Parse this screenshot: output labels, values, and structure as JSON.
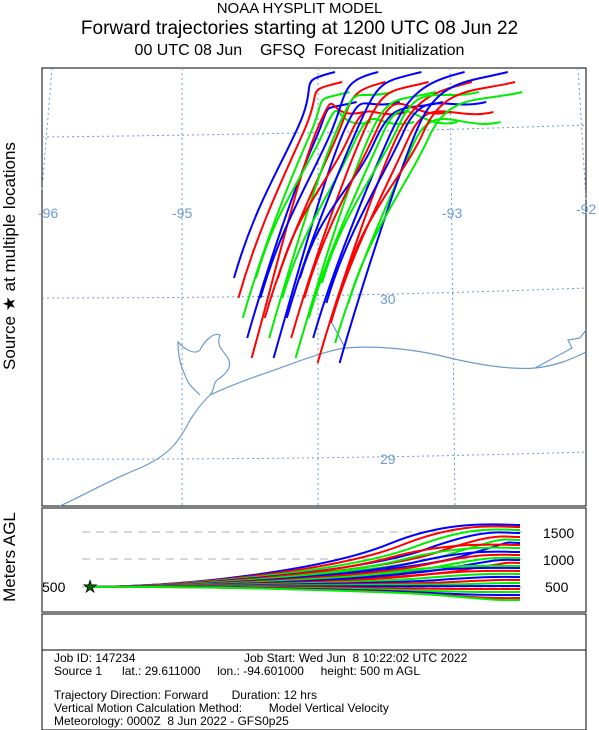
{
  "title": {
    "line1": "NOAA HYSPLIT MODEL",
    "line2": "Forward trajectories starting at 1200 UTC 08 Jun 22",
    "line3": "00 UTC 08 Jun    GFSQ  Forecast Initialization"
  },
  "side_labels": {
    "source": "Source ★  at multiple locations",
    "meters": "Meters AGL"
  },
  "map": {
    "lon_labels": [
      "-96",
      "-95",
      "-93",
      "-92"
    ],
    "lat_labels": [
      "30",
      "29"
    ],
    "colors": {
      "red": "#ff0000",
      "blue": "#0000ff",
      "green": "#00ee00",
      "grid": "#6b9bd1",
      "coast": "#6b9bd1"
    }
  },
  "profile": {
    "left_label": "500",
    "right_labels": [
      "1500",
      "1000",
      "500"
    ],
    "source_marker": "star-icon"
  },
  "info": {
    "job_id": "Job ID: 147234",
    "job_start": "Job Start: Wed Jun  8 10:22:02 UTC 2022",
    "source": "Source 1      lat.: 29.611000     lon.: -94.601000     height: 500 m AGL",
    "direction": "Trajectory Direction: Forward       Duration: 12 hrs",
    "vertical": "Vertical Motion Calculation Method:        Model Vertical Velocity",
    "meteorology": "Meteorology: 0000Z  8 Jun 2022 - GFS0p25"
  }
}
